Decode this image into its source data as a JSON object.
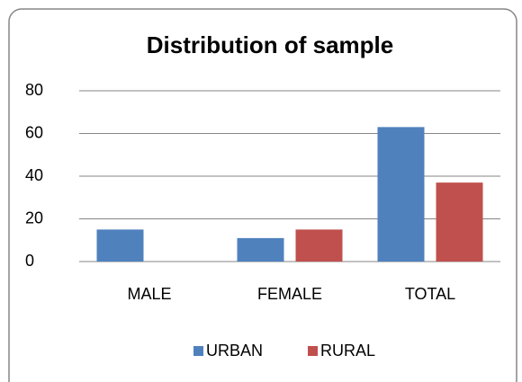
{
  "chart_data": {
    "type": "bar",
    "title": "Distribution of sample",
    "categories": [
      "MALE",
      "FEMALE",
      "TOTAL"
    ],
    "series": [
      {
        "name": "URBAN",
        "color": "#4f81bd",
        "values": [
          15,
          11,
          63
        ]
      },
      {
        "name": "RURAL",
        "color": "#c0504d",
        "values": [
          0,
          15,
          37
        ]
      }
    ],
    "ylim": [
      0,
      80
    ],
    "yticks": [
      0,
      20,
      40,
      60,
      80
    ],
    "grid": true,
    "legend": "bottom"
  }
}
